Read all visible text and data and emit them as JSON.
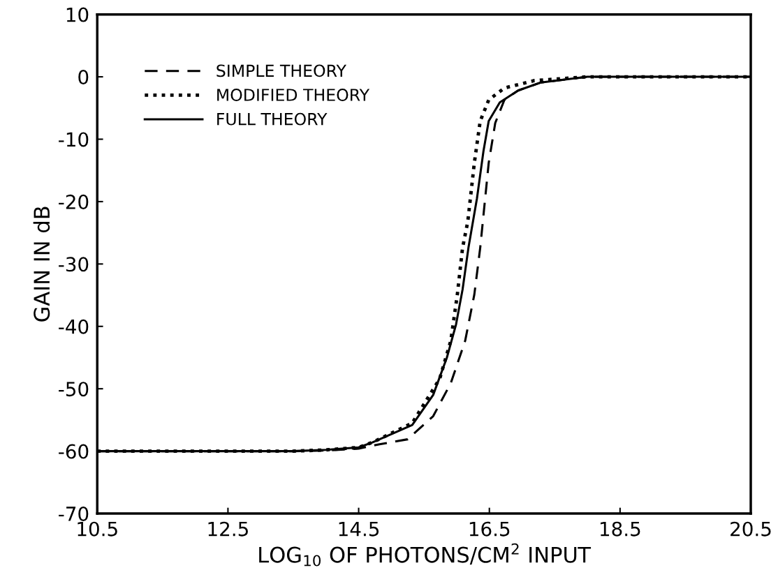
{
  "chart_data": {
    "type": "line",
    "xlabel": "LOG$_{10}$ OF PHOTONS/CM$^{2}$ INPUT",
    "ylabel": "GAIN IN dB",
    "xlim": [
      10.5,
      20.5
    ],
    "xticks": [
      10.5,
      12.5,
      14.5,
      16.5,
      18.5,
      20.5
    ],
    "ylim": [
      -70,
      10
    ],
    "yticks": [
      -70,
      -60,
      -50,
      -40,
      -30,
      -20,
      -10,
      0,
      10
    ],
    "grid": false,
    "legend": "top left",
    "marker": "none",
    "series": [
      {
        "name": "SIMPLE THEORY",
        "color": "#000000",
        "line_style": "dashed",
        "x": [
          10.5,
          13.5,
          14.0,
          14.5,
          14.82,
          15.25,
          15.64,
          15.91,
          16.13,
          16.27,
          16.36,
          16.49,
          16.59,
          16.73,
          16.94,
          17.29,
          18.0,
          20.5
        ],
        "values": [
          -60,
          -60,
          -59.9,
          -59.6,
          -58.9,
          -58.1,
          -54.4,
          -49.1,
          -42.3,
          -34.9,
          -27.4,
          -13.8,
          -7.4,
          -3.7,
          -2.2,
          -0.9,
          0,
          0
        ]
      },
      {
        "name": "MODIFIED THEORY",
        "color": "#000000",
        "line_style": "dotted",
        "x": [
          10.5,
          13.5,
          14.0,
          14.5,
          14.71,
          15.32,
          15.74,
          15.91,
          16.01,
          16.09,
          16.17,
          16.27,
          16.36,
          16.49,
          16.73,
          17.19,
          18.0,
          20.5
        ],
        "values": [
          -60,
          -60,
          -59.8,
          -59.4,
          -58.6,
          -55.5,
          -48.4,
          -42.3,
          -34.9,
          -27.4,
          -23.2,
          -13.8,
          -7.1,
          -3.7,
          -1.8,
          -0.6,
          0,
          0
        ]
      },
      {
        "name": "FULL THEORY",
        "color": "#000000",
        "line_style": "solid",
        "x": [
          10.5,
          13.5,
          14.0,
          14.5,
          14.71,
          15.32,
          15.64,
          15.85,
          15.99,
          16.09,
          16.18,
          16.31,
          16.41,
          16.49,
          16.66,
          16.94,
          17.29,
          18.0,
          20.5
        ],
        "values": [
          -60,
          -60,
          -59.8,
          -59.4,
          -58.6,
          -55.8,
          -51.0,
          -45.0,
          -39.7,
          -34.1,
          -27.4,
          -19.5,
          -11.9,
          -7.1,
          -4.1,
          -2.2,
          -0.9,
          0,
          0
        ]
      }
    ]
  }
}
